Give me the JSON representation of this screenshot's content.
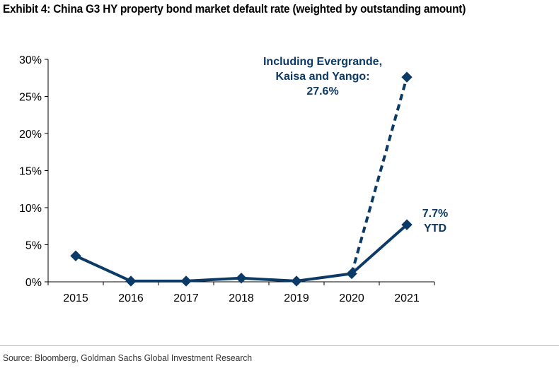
{
  "title": "Exhibit 4: China G3 HY property bond market default rate (weighted by outstanding amount)",
  "source": "Source: Bloomberg, Goldman Sachs Global Investment Research",
  "colors": {
    "series": "#0c3a66",
    "axis": "#000000",
    "rule": "#bfbfbf"
  },
  "chart_data": {
    "type": "line",
    "title": "Exhibit 4: China G3 HY property bond market default rate (weighted by outstanding amount)",
    "xlabel": "",
    "ylabel": "",
    "categories": [
      "2015",
      "2016",
      "2017",
      "2018",
      "2019",
      "2020",
      "2021"
    ],
    "ylim": [
      0,
      30
    ],
    "yticks": [
      0,
      5,
      10,
      15,
      20,
      25,
      30
    ],
    "ytick_labels": [
      "0%",
      "5%",
      "10%",
      "15%",
      "20%",
      "25%",
      "30%"
    ],
    "grid": false,
    "legend": "none",
    "series": [
      {
        "name": "Default rate",
        "style": "solid",
        "marker": "diamond",
        "x": [
          "2015",
          "2016",
          "2017",
          "2018",
          "2019",
          "2020",
          "2021"
        ],
        "values": [
          3.5,
          0.1,
          0.1,
          0.5,
          0.1,
          1.1,
          7.7
        ]
      },
      {
        "name": "Including Evergrande, Kaisa and Yango",
        "style": "dashed",
        "marker": "diamond",
        "x": [
          "2020",
          "2021"
        ],
        "values": [
          1.1,
          27.6
        ]
      }
    ],
    "annotations": [
      {
        "id": "ytd",
        "lines": [
          "7.7%",
          "YTD"
        ],
        "target": {
          "x": "2021",
          "y": 7.7
        }
      },
      {
        "id": "evergrande",
        "lines": [
          "Including Evergrande,",
          "Kaisa and Yango:",
          "27.6%"
        ],
        "target": {
          "x": "2021",
          "y": 27.6
        }
      }
    ]
  }
}
